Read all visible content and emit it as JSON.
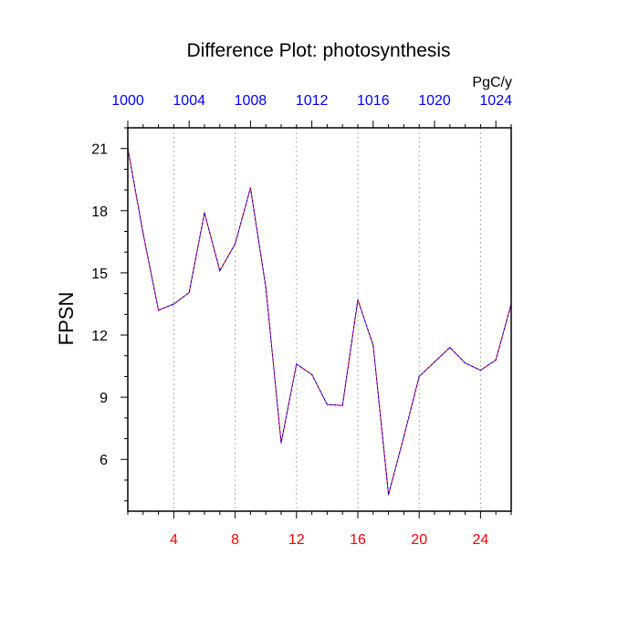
{
  "chart_data": {
    "type": "line",
    "title": "Difference Plot: photosynthesis",
    "ylabel": "FPSN",
    "units_label": "PgC/y",
    "x": [
      1,
      2,
      3,
      4,
      5,
      6,
      7,
      8,
      9,
      10,
      11,
      12,
      13,
      14,
      15,
      16,
      17,
      18,
      19,
      20,
      21,
      22,
      23,
      24,
      25,
      26
    ],
    "series": [
      {
        "values": [
          21.0,
          16.9,
          13.2,
          13.5,
          14.05,
          17.9,
          15.1,
          16.4,
          19.1,
          14.3,
          6.8,
          10.6,
          10.1,
          8.65,
          8.6,
          13.7,
          11.5,
          4.3,
          7.1,
          10.0,
          10.7,
          11.4,
          10.65,
          10.3,
          10.8,
          13.5
        ],
        "color_outer": "#ff0000",
        "color_inner": "#0000ff"
      }
    ],
    "xlim": [
      1,
      26
    ],
    "ylim": [
      3.5,
      22
    ],
    "bottom_axis": {
      "ticks": [
        4,
        8,
        12,
        16,
        20,
        24
      ],
      "labels": [
        "4",
        "8",
        "12",
        "16",
        "20",
        "24"
      ],
      "color": "#ff0000"
    },
    "top_axis": {
      "ticks": [
        1,
        5,
        9,
        13,
        17,
        21,
        25
      ],
      "labels": [
        "1000",
        "1004",
        "1008",
        "1012",
        "1016",
        "1020",
        "1024"
      ],
      "color": "#0000ff"
    },
    "left_axis": {
      "ticks": [
        6,
        9,
        12,
        15,
        18,
        21
      ],
      "labels": [
        "6",
        "9",
        "12",
        "15",
        "18",
        "21"
      ]
    },
    "grid": true
  }
}
